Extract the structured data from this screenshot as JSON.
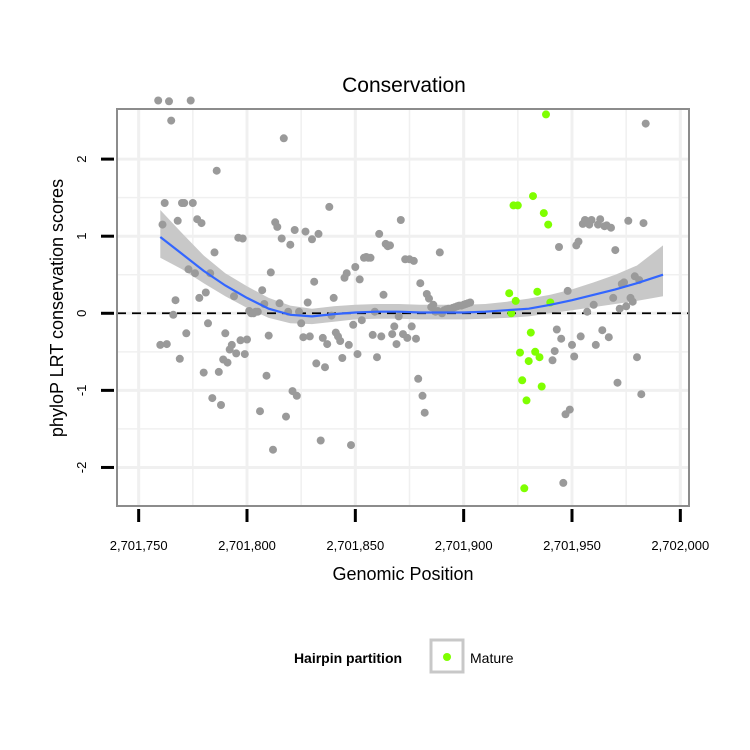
{
  "chart_data": {
    "type": "scatter",
    "title": "Conservation",
    "xlabel": "Genomic Position",
    "ylabel": "phyloP LRT conservation scores",
    "xlim": [
      2701740,
      2702004
    ],
    "ylim": [
      -2.5,
      2.65
    ],
    "xticks": [
      2701750,
      2701800,
      2701850,
      2701900,
      2701950,
      2702000
    ],
    "xtick_labels": [
      "2,701,750",
      "2,701,800",
      "2,701,850",
      "2,701,900",
      "2,701,950",
      "2,702,000"
    ],
    "yticks": [
      -2,
      -1,
      0,
      1,
      2
    ],
    "ytick_labels": [
      "-2",
      "-1",
      "0",
      "1",
      "2"
    ],
    "grid": true,
    "reference_line": {
      "y": 0,
      "style": "dashed"
    },
    "legend": {
      "title": "Hairpin partition",
      "placement": "bottom",
      "entries": [
        {
          "label": "Mature",
          "color": "#7fff00"
        }
      ]
    },
    "colors": {
      "other": "#9a9a9a",
      "mature": "#7fff00",
      "smooth": "#3366ff",
      "ribbon": "#c8c8c8",
      "panel_border": "#8c8c8c",
      "grid": "#f0f0f0"
    },
    "series": [
      {
        "name": "Mature",
        "color": "#7fff00",
        "points": [
          [
            2701921,
            0.26
          ],
          [
            2701922,
            0.0
          ],
          [
            2701923,
            1.4
          ],
          [
            2701924,
            0.16
          ],
          [
            2701925,
            1.4
          ],
          [
            2701926,
            -0.51
          ],
          [
            2701927,
            -0.87
          ],
          [
            2701928,
            -2.27
          ],
          [
            2701929,
            -1.13
          ],
          [
            2701930,
            -0.62
          ],
          [
            2701931,
            -0.25
          ],
          [
            2701932,
            1.52
          ],
          [
            2701933,
            -0.5
          ],
          [
            2701934,
            0.28
          ],
          [
            2701935,
            -0.57
          ],
          [
            2701936,
            -0.95
          ],
          [
            2701937,
            1.3
          ],
          [
            2701938,
            2.58
          ],
          [
            2701939,
            1.15
          ],
          [
            2701940,
            0.14
          ]
        ]
      },
      {
        "color": "#9a9a9a",
        "points": [
          [
            2701759,
            2.76
          ],
          [
            2701760,
            -0.41
          ],
          [
            2701761,
            1.15
          ],
          [
            2701762,
            1.43
          ],
          [
            2701763,
            -0.4
          ],
          [
            2701764,
            2.75
          ],
          [
            2701765,
            2.5
          ],
          [
            2701766,
            -0.02
          ],
          [
            2701767,
            0.17
          ],
          [
            2701768,
            1.2
          ],
          [
            2701769,
            -0.59
          ],
          [
            2701770,
            1.43
          ],
          [
            2701771,
            1.43
          ],
          [
            2701772,
            -0.26
          ],
          [
            2701773,
            0.57
          ],
          [
            2701774,
            2.76
          ],
          [
            2701775,
            1.43
          ],
          [
            2701776,
            0.52
          ],
          [
            2701777,
            1.22
          ],
          [
            2701778,
            0.2
          ],
          [
            2701779,
            1.17
          ],
          [
            2701780,
            -0.77
          ],
          [
            2701781,
            0.27
          ],
          [
            2701782,
            -0.13
          ],
          [
            2701783,
            0.52
          ],
          [
            2701784,
            -1.1
          ],
          [
            2701785,
            0.79
          ],
          [
            2701786,
            1.85
          ],
          [
            2701787,
            -0.76
          ],
          [
            2701788,
            -1.19
          ],
          [
            2701789,
            -0.6
          ],
          [
            2701790,
            -0.26
          ],
          [
            2701791,
            -0.64
          ],
          [
            2701792,
            -0.47
          ],
          [
            2701793,
            -0.41
          ],
          [
            2701794,
            0.22
          ],
          [
            2701795,
            -0.52
          ],
          [
            2701796,
            0.98
          ],
          [
            2701797,
            -0.35
          ],
          [
            2701798,
            0.97
          ],
          [
            2701799,
            -0.53
          ],
          [
            2701800,
            -0.34
          ],
          [
            2701801,
            0.03
          ],
          [
            2701802,
            0.0
          ],
          [
            2701803,
            0.0
          ],
          [
            2701804,
            0.02
          ],
          [
            2701805,
            0.02
          ],
          [
            2701806,
            -1.27
          ],
          [
            2701807,
            0.3
          ],
          [
            2701808,
            0.12
          ],
          [
            2701809,
            -0.81
          ],
          [
            2701810,
            -0.29
          ],
          [
            2701811,
            0.53
          ],
          [
            2701812,
            -1.77
          ],
          [
            2701813,
            1.18
          ],
          [
            2701814,
            1.12
          ],
          [
            2701815,
            0.13
          ],
          [
            2701816,
            0.97
          ],
          [
            2701817,
            2.27
          ],
          [
            2701818,
            -1.34
          ],
          [
            2701819,
            0.02
          ],
          [
            2701820,
            0.89
          ],
          [
            2701821,
            -1.01
          ],
          [
            2701822,
            1.08
          ],
          [
            2701823,
            -1.07
          ],
          [
            2701824,
            0.02
          ],
          [
            2701825,
            -0.13
          ],
          [
            2701826,
            -0.31
          ],
          [
            2701827,
            1.06
          ],
          [
            2701828,
            0.14
          ],
          [
            2701829,
            -0.3
          ],
          [
            2701830,
            0.96
          ],
          [
            2701831,
            0.41
          ],
          [
            2701832,
            -0.65
          ],
          [
            2701833,
            1.03
          ],
          [
            2701834,
            -1.65
          ],
          [
            2701835,
            -0.32
          ],
          [
            2701836,
            -0.7
          ],
          [
            2701837,
            -0.4
          ],
          [
            2701838,
            1.38
          ],
          [
            2701839,
            -0.03
          ],
          [
            2701840,
            0.2
          ],
          [
            2701841,
            -0.25
          ],
          [
            2701842,
            -0.3
          ],
          [
            2701843,
            -0.36
          ],
          [
            2701844,
            -0.58
          ],
          [
            2701845,
            0.46
          ],
          [
            2701846,
            0.52
          ],
          [
            2701847,
            -0.41
          ],
          [
            2701848,
            -1.71
          ],
          [
            2701849,
            -0.15
          ],
          [
            2701850,
            0.6
          ],
          [
            2701851,
            -0.53
          ],
          [
            2701852,
            0.44
          ],
          [
            2701853,
            -0.09
          ],
          [
            2701854,
            0.72
          ],
          [
            2701855,
            0.73
          ],
          [
            2701856,
            0.72
          ],
          [
            2701857,
            0.72
          ],
          [
            2701858,
            -0.28
          ],
          [
            2701859,
            0.02
          ],
          [
            2701860,
            -0.57
          ],
          [
            2701861,
            1.03
          ],
          [
            2701862,
            -0.3
          ],
          [
            2701863,
            0.24
          ],
          [
            2701864,
            0.9
          ],
          [
            2701865,
            0.87
          ],
          [
            2701866,
            0.88
          ],
          [
            2701867,
            -0.27
          ],
          [
            2701868,
            -0.17
          ],
          [
            2701869,
            -0.4
          ],
          [
            2701870,
            -0.04
          ],
          [
            2701871,
            1.21
          ],
          [
            2701872,
            -0.27
          ],
          [
            2701873,
            0.7
          ],
          [
            2701874,
            -0.32
          ],
          [
            2701875,
            0.7
          ],
          [
            2701876,
            -0.17
          ],
          [
            2701877,
            0.68
          ],
          [
            2701878,
            -0.33
          ],
          [
            2701879,
            -0.85
          ],
          [
            2701880,
            0.39
          ],
          [
            2701881,
            -1.07
          ],
          [
            2701882,
            -1.29
          ],
          [
            2701883,
            0.25
          ],
          [
            2701884,
            0.19
          ],
          [
            2701885,
            0.08
          ],
          [
            2701886,
            0.11
          ],
          [
            2701887,
            0.02
          ],
          [
            2701888,
            0.03
          ],
          [
            2701889,
            0.79
          ],
          [
            2701890,
            0.0
          ],
          [
            2701891,
            0.04
          ],
          [
            2701892,
            0.05
          ],
          [
            2701893,
            0.06
          ],
          [
            2701894,
            0.06
          ],
          [
            2701895,
            0.07
          ],
          [
            2701896,
            0.08
          ],
          [
            2701897,
            0.09
          ],
          [
            2701898,
            0.1
          ],
          [
            2701899,
            0.1
          ],
          [
            2701900,
            0.11
          ],
          [
            2701901,
            0.12
          ],
          [
            2701902,
            0.13
          ],
          [
            2701903,
            0.14
          ],
          [
            2701941,
            -0.61
          ],
          [
            2701942,
            -0.49
          ],
          [
            2701943,
            -0.21
          ],
          [
            2701944,
            0.86
          ],
          [
            2701945,
            -0.33
          ],
          [
            2701946,
            -2.2
          ],
          [
            2701947,
            -1.31
          ],
          [
            2701948,
            0.29
          ],
          [
            2701949,
            -1.25
          ],
          [
            2701950,
            -0.41
          ],
          [
            2701951,
            -0.56
          ],
          [
            2701952,
            0.88
          ],
          [
            2701953,
            0.93
          ],
          [
            2701954,
            -0.3
          ],
          [
            2701955,
            1.16
          ],
          [
            2701956,
            1.21
          ],
          [
            2701957,
            0.02
          ],
          [
            2701958,
            1.15
          ],
          [
            2701959,
            1.21
          ],
          [
            2701960,
            0.11
          ],
          [
            2701961,
            -0.41
          ],
          [
            2701962,
            1.15
          ],
          [
            2701963,
            1.22
          ],
          [
            2701964,
            -0.22
          ],
          [
            2701965,
            1.13
          ],
          [
            2701966,
            1.14
          ],
          [
            2701967,
            -0.31
          ],
          [
            2701968,
            1.11
          ],
          [
            2701969,
            0.2
          ],
          [
            2701970,
            0.82
          ],
          [
            2701971,
            -0.9
          ],
          [
            2701972,
            0.06
          ],
          [
            2701973,
            0.38
          ],
          [
            2701974,
            0.4
          ],
          [
            2701975,
            0.09
          ],
          [
            2701976,
            1.2
          ],
          [
            2701977,
            0.2
          ],
          [
            2701978,
            0.15
          ],
          [
            2701979,
            0.48
          ],
          [
            2701980,
            -0.57
          ],
          [
            2701981,
            0.43
          ],
          [
            2701982,
            -1.05
          ],
          [
            2701983,
            1.17
          ],
          [
            2701984,
            2.46
          ]
        ]
      }
    ],
    "smooth": {
      "x": [
        2701760,
        2701770,
        2701780,
        2701790,
        2701800,
        2701810,
        2701820,
        2701830,
        2701840,
        2701850,
        2701860,
        2701870,
        2701880,
        2701890,
        2701900,
        2701910,
        2701920,
        2701930,
        2701940,
        2701950,
        2701960,
        2701970,
        2701980,
        2701992
      ],
      "y": [
        0.99,
        0.77,
        0.55,
        0.36,
        0.2,
        0.06,
        -0.02,
        -0.04,
        -0.01,
        0.01,
        0.02,
        0.02,
        0.01,
        0.01,
        0.01,
        0.02,
        0.04,
        0.06,
        0.11,
        0.17,
        0.24,
        0.31,
        0.39,
        0.5
      ],
      "lower": [
        0.72,
        0.57,
        0.39,
        0.22,
        0.07,
        -0.06,
        -0.13,
        -0.14,
        -0.11,
        -0.08,
        -0.07,
        -0.07,
        -0.08,
        -0.08,
        -0.08,
        -0.07,
        -0.06,
        -0.04,
        0.0,
        0.04,
        0.08,
        0.12,
        0.16,
        0.22
      ],
      "upper": [
        1.34,
        1.04,
        0.75,
        0.52,
        0.35,
        0.2,
        0.1,
        0.06,
        0.09,
        0.11,
        0.12,
        0.12,
        0.11,
        0.11,
        0.11,
        0.12,
        0.15,
        0.19,
        0.24,
        0.31,
        0.4,
        0.5,
        0.62,
        0.88
      ]
    }
  }
}
